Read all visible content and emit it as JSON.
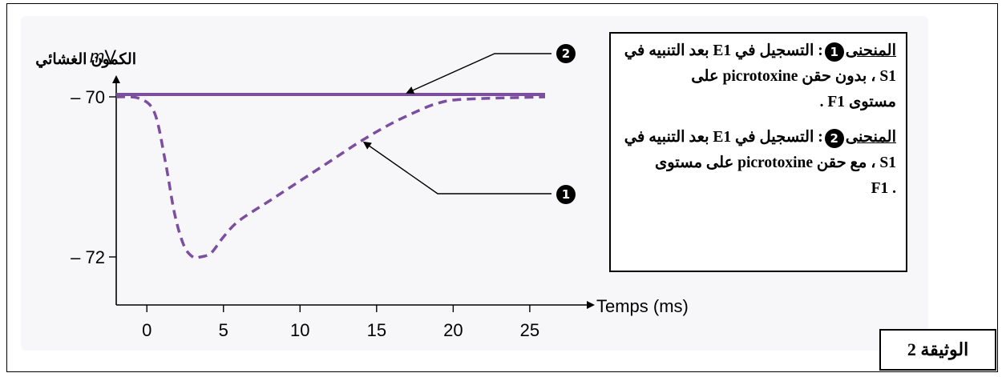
{
  "chart_data": {
    "type": "line",
    "ylabel_unit": "mV",
    "ylabel": "الكمون الغشائي",
    "xlabel": "Temps (ms)",
    "x_ticks": [
      0,
      5,
      10,
      15,
      20,
      25
    ],
    "y_ticks": [
      -70,
      -72
    ],
    "y_tick_labels": [
      "– 70",
      "– 72"
    ],
    "xlim": [
      -2,
      26
    ],
    "ylim": [
      -72.6,
      -69.75
    ],
    "series": [
      {
        "marker": "2",
        "style": "solid",
        "color": "#7b4ea0",
        "x": [
          -2,
          0,
          5,
          10,
          15,
          20,
          25,
          26
        ],
        "y": [
          -69.97,
          -69.97,
          -69.97,
          -69.97,
          -69.97,
          -69.97,
          -69.97,
          -69.97
        ]
      },
      {
        "marker": "1",
        "style": "dashed",
        "color": "#7b4ea0",
        "x": [
          -2,
          -0.5,
          0.5,
          1.2,
          1.8,
          2.4,
          3,
          3.5,
          4.2,
          5,
          6,
          8,
          10,
          12,
          14,
          16,
          18,
          19,
          20,
          22,
          24,
          26
        ],
        "y": [
          -70.0,
          -70.02,
          -70.2,
          -70.8,
          -71.45,
          -71.85,
          -72.0,
          -72.0,
          -71.95,
          -71.75,
          -71.55,
          -71.3,
          -71.05,
          -70.8,
          -70.55,
          -70.33,
          -70.15,
          -70.08,
          -70.04,
          -70.02,
          -70.01,
          -70.0
        ]
      }
    ]
  },
  "legend": {
    "entry1": {
      "title": "المنحنى",
      "num": "1",
      "tail": ": التسجيل في E1 بعد التنبيه في",
      "line2": "S1 ، بدون حقن picrotoxine على",
      "line3": "مستوى F1 ."
    },
    "entry2": {
      "title": "المنحنى",
      "num": "2",
      "tail": ": التسجيل في E1 بعد التنبيه في",
      "line2": "S1 ، مع حقن picrotoxine على مستوى",
      "line3": ". F1"
    }
  },
  "markers": {
    "curve1": "1",
    "curve2": "2"
  },
  "document_label": "الوثيقة 2"
}
